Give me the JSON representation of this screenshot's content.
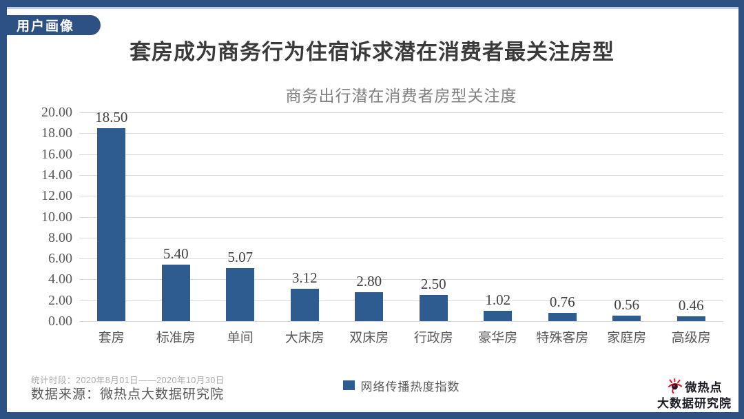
{
  "page": {
    "tag": "用户画像",
    "main_title": "套房成为商务行为住宿诉求潜在消费者最关注房型"
  },
  "chart_data": {
    "type": "bar",
    "title": "商务出行潜在消费者房型关注度",
    "categories": [
      "套房",
      "标准房",
      "单间",
      "大床房",
      "双床房",
      "行政房",
      "豪华房",
      "特殊客房",
      "家庭房",
      "高级房"
    ],
    "series": [
      {
        "name": "网络传播热度指数",
        "values": [
          18.5,
          5.4,
          5.07,
          3.12,
          2.8,
          2.5,
          1.02,
          0.76,
          0.56,
          0.46
        ]
      }
    ],
    "value_labels": [
      "18.50",
      "5.40",
      "5.07",
      "3.12",
      "2.80",
      "2.50",
      "1.02",
      "0.76",
      "0.56",
      "0.46"
    ],
    "xlabel": "",
    "ylabel": "",
    "ylim": [
      0,
      20
    ],
    "ytick_labels_top_to_bottom": [
      "20.00",
      "18.00",
      "16.00",
      "14.00",
      "12.00",
      "10.00",
      "8.00",
      "6.00",
      "4.00",
      "2.00",
      "0.00"
    ],
    "grid": true,
    "legend": {
      "label": "网络传播热度指数",
      "position": "bottom-center"
    },
    "bar_color": "#2f5c90"
  },
  "footer": {
    "period": "统计时段：2020年8月01日——2020年10月30日",
    "source": "数据来源：微热点大数据研究院"
  },
  "logo": {
    "name1": "微热点",
    "name2": "大数据研究院",
    "icon": "weibo-eye-icon",
    "icon_color": "#e6162d",
    "text_color": "#1c1c26"
  },
  "colors": {
    "frame": "#2e5183",
    "accent_line": "#bccfe6",
    "gridline": "#d9d9d9",
    "bar": "#2f5c90"
  }
}
